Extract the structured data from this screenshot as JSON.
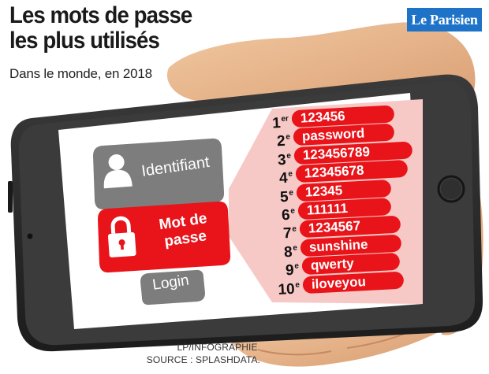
{
  "header": {
    "title_line1": "Les mots de passe",
    "title_line2": "les plus utilisés",
    "subtitle": "Dans le monde, en 2018",
    "logo": "Le Parisien"
  },
  "phone_ui": {
    "username_label": "Identifiant",
    "password_label_line1": "Mot de",
    "password_label_line2": "passe",
    "login_label": "Login"
  },
  "ranking": [
    {
      "rank": "1",
      "suffix": "er",
      "password": "123456"
    },
    {
      "rank": "2",
      "suffix": "e",
      "password": "password"
    },
    {
      "rank": "3",
      "suffix": "e",
      "password": "123456789"
    },
    {
      "rank": "4",
      "suffix": "e",
      "password": "12345678"
    },
    {
      "rank": "5",
      "suffix": "e",
      "password": "12345"
    },
    {
      "rank": "6",
      "suffix": "e",
      "password": "111111"
    },
    {
      "rank": "7",
      "suffix": "e",
      "password": "1234567"
    },
    {
      "rank": "8",
      "suffix": "e",
      "password": "sunshine"
    },
    {
      "rank": "9",
      "suffix": "e",
      "password": "qwerty"
    },
    {
      "rank": "10",
      "suffix": "e",
      "password": "iloveyou"
    }
  ],
  "credits": {
    "line1": "LP/INFOGRAPHIE.",
    "line2": "SOURCE : SPLASHDATA."
  },
  "colors": {
    "accent_red": "#e8141a",
    "pale_red": "#f7c9c6",
    "grey_field": "#7d7d7d",
    "phone_body": "#2b2b2b",
    "logo_blue": "#1e73c8",
    "skin": "#e9b98f"
  },
  "icons": {
    "username_field": "user-icon",
    "password_field": "padlock-icon"
  }
}
